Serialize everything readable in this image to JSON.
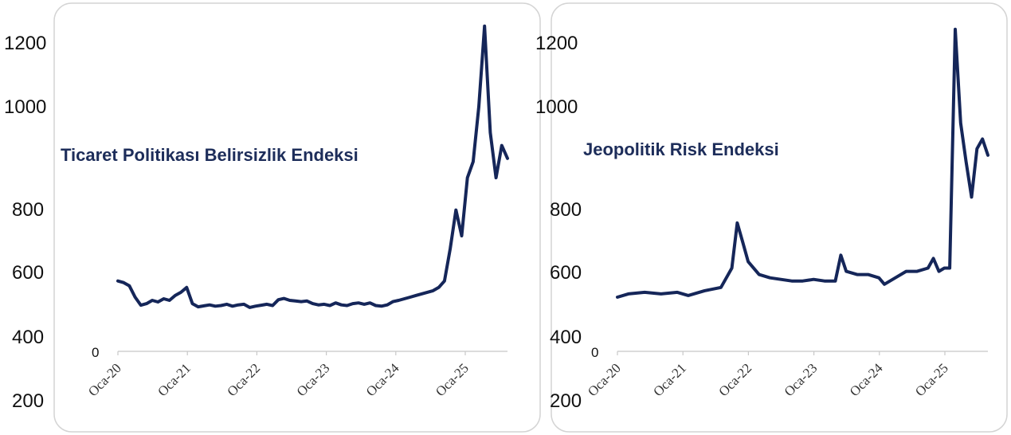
{
  "colors": {
    "line": "#152659",
    "title": "#1d2d5a",
    "axis": "#c8c8c8",
    "panel_border": "#d4d4d4"
  },
  "shared_axis": {
    "y_tick_labels": [
      "1200",
      "1000",
      "800",
      "600",
      "400",
      "200"
    ],
    "baseline_label": "0",
    "x_tick_labels": [
      "Oca-20",
      "Oca-21",
      "Oca-22",
      "Oca-23",
      "Oca-24",
      "Oca-25"
    ]
  },
  "chart_data": [
    {
      "type": "line",
      "title": "Ticaret Politikası Belirsizlik Endeksi",
      "xlabel": "",
      "ylabel": "",
      "yticks": [
        1200,
        1000,
        800,
        600,
        400,
        200
      ],
      "ylim": [
        200,
        1250
      ],
      "xlim": [
        "2020-01",
        "2025-09"
      ],
      "grid": false,
      "series": [
        {
          "color": "#152659",
          "points": [
            [
              "2020-01",
              460
            ],
            [
              "2020-02",
              455
            ],
            [
              "2020-03",
              445
            ],
            [
              "2020-04",
              410
            ],
            [
              "2020-05",
              385
            ],
            [
              "2020-06",
              390
            ],
            [
              "2020-07",
              400
            ],
            [
              "2020-08",
              395
            ],
            [
              "2020-09",
              405
            ],
            [
              "2020-10",
              400
            ],
            [
              "2020-11",
              415
            ],
            [
              "2020-12",
              425
            ],
            [
              "2021-01",
              440
            ],
            [
              "2021-02",
              390
            ],
            [
              "2021-03",
              380
            ],
            [
              "2021-04",
              383
            ],
            [
              "2021-05",
              386
            ],
            [
              "2021-06",
              382
            ],
            [
              "2021-07",
              384
            ],
            [
              "2021-08",
              388
            ],
            [
              "2021-09",
              382
            ],
            [
              "2021-10",
              386
            ],
            [
              "2021-11",
              388
            ],
            [
              "2021-12",
              378
            ],
            [
              "2022-01",
              382
            ],
            [
              "2022-02",
              385
            ],
            [
              "2022-03",
              388
            ],
            [
              "2022-04",
              384
            ],
            [
              "2022-05",
              402
            ],
            [
              "2022-06",
              406
            ],
            [
              "2022-07",
              400
            ],
            [
              "2022-08",
              398
            ],
            [
              "2022-09",
              396
            ],
            [
              "2022-10",
              398
            ],
            [
              "2022-11",
              390
            ],
            [
              "2022-12",
              386
            ],
            [
              "2023-01",
              388
            ],
            [
              "2023-02",
              384
            ],
            [
              "2023-03",
              392
            ],
            [
              "2023-04",
              386
            ],
            [
              "2023-05",
              384
            ],
            [
              "2023-06",
              390
            ],
            [
              "2023-07",
              392
            ],
            [
              "2023-08",
              388
            ],
            [
              "2023-09",
              392
            ],
            [
              "2023-10",
              384
            ],
            [
              "2023-11",
              382
            ],
            [
              "2023-12",
              386
            ],
            [
              "2024-01",
              396
            ],
            [
              "2024-02",
              400
            ],
            [
              "2024-03",
              405
            ],
            [
              "2024-04",
              410
            ],
            [
              "2024-05",
              415
            ],
            [
              "2024-06",
              420
            ],
            [
              "2024-07",
              425
            ],
            [
              "2024-08",
              430
            ],
            [
              "2024-09",
              440
            ],
            [
              "2024-10",
              460
            ],
            [
              "2024-11",
              560
            ],
            [
              "2024-12",
              680
            ],
            [
              "2025-01",
              600
            ],
            [
              "2025-02",
              780
            ],
            [
              "2025-03",
              830
            ],
            [
              "2025-04",
              1000
            ],
            [
              "2025-05",
              1250
            ],
            [
              "2025-06",
              920
            ],
            [
              "2025-07",
              780
            ],
            [
              "2025-08",
              880
            ],
            [
              "2025-09",
              840
            ]
          ]
        }
      ]
    },
    {
      "type": "line",
      "title": "Jeopolitik Risk Endeksi",
      "xlabel": "",
      "ylabel": "",
      "yticks": [
        1200,
        1000,
        800,
        600,
        400,
        200
      ],
      "ylim": [
        200,
        1250
      ],
      "xlim": [
        "2020-01",
        "2025-09"
      ],
      "grid": false,
      "series": [
        {
          "color": "#152659",
          "points": [
            [
              "2020-01",
              410
            ],
            [
              "2020-03",
              420
            ],
            [
              "2020-06",
              425
            ],
            [
              "2020-09",
              420
            ],
            [
              "2020-12",
              425
            ],
            [
              "2021-02",
              415
            ],
            [
              "2021-05",
              430
            ],
            [
              "2021-08",
              440
            ],
            [
              "2021-10",
              500
            ],
            [
              "2021-11",
              640
            ],
            [
              "2021-12",
              580
            ],
            [
              "2022-01",
              520
            ],
            [
              "2022-03",
              480
            ],
            [
              "2022-05",
              470
            ],
            [
              "2022-07",
              465
            ],
            [
              "2022-09",
              460
            ],
            [
              "2022-11",
              460
            ],
            [
              "2023-01",
              465
            ],
            [
              "2023-03",
              460
            ],
            [
              "2023-05",
              460
            ],
            [
              "2023-06",
              540
            ],
            [
              "2023-07",
              490
            ],
            [
              "2023-09",
              480
            ],
            [
              "2023-11",
              480
            ],
            [
              "2024-01",
              470
            ],
            [
              "2024-02",
              450
            ],
            [
              "2024-04",
              470
            ],
            [
              "2024-06",
              490
            ],
            [
              "2024-08",
              490
            ],
            [
              "2024-10",
              500
            ],
            [
              "2024-11",
              530
            ],
            [
              "2024-12",
              490
            ],
            [
              "2025-01",
              500
            ],
            [
              "2025-02",
              500
            ],
            [
              "2025-03",
              1240
            ],
            [
              "2025-04",
              950
            ],
            [
              "2025-05",
              830
            ],
            [
              "2025-06",
              720
            ],
            [
              "2025-07",
              870
            ],
            [
              "2025-08",
              900
            ],
            [
              "2025-09",
              850
            ]
          ]
        }
      ]
    }
  ]
}
